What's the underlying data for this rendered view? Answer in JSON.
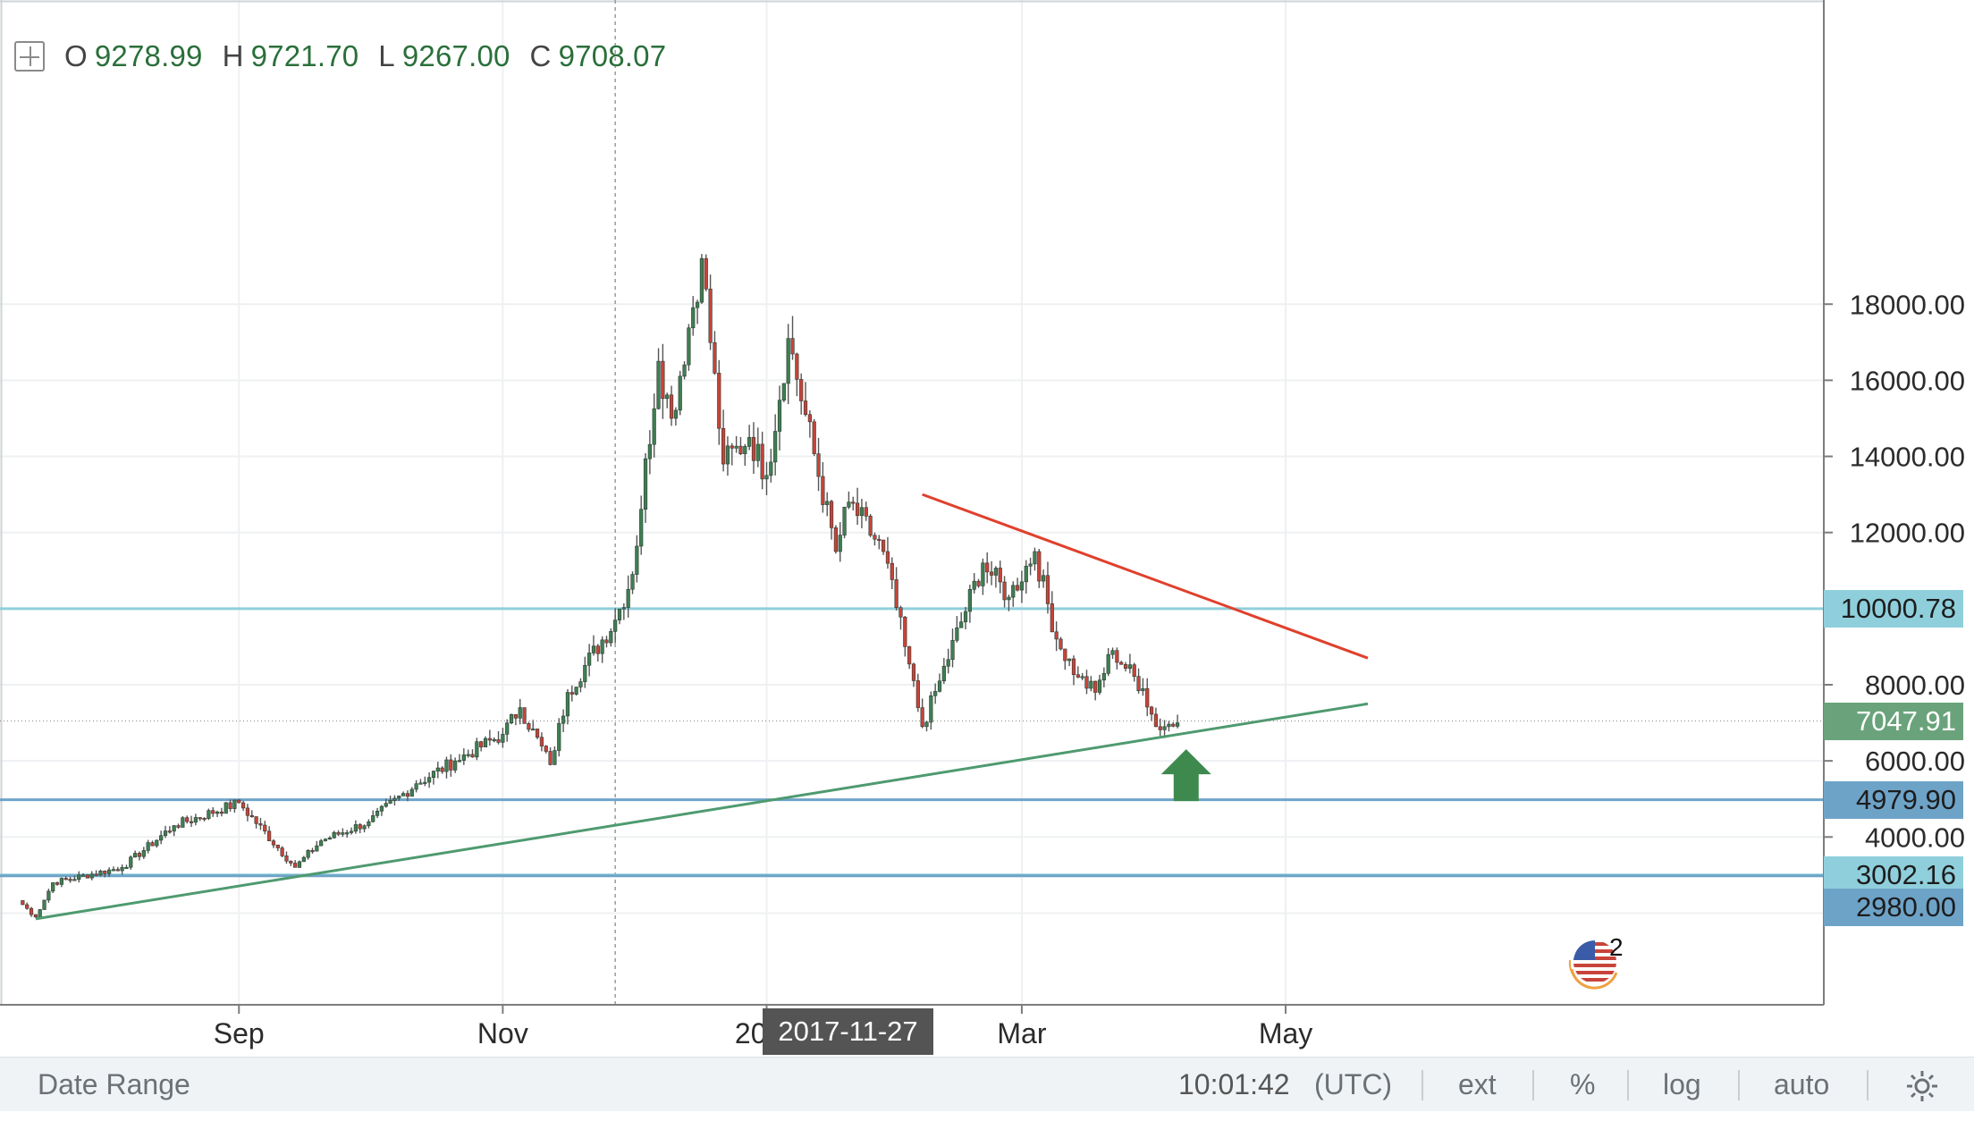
{
  "legend": {
    "open_label": "O",
    "open_value": "9278.99",
    "high_label": "H",
    "high_value": "9721.70",
    "low_label": "L",
    "low_value": "9267.00",
    "close_label": "C",
    "close_value": "9708.07"
  },
  "chart_data": {
    "type": "candlestick",
    "title": "",
    "xlabel": "",
    "ylabel": "",
    "x_ticks": [
      "Sep",
      "Nov",
      "2018",
      "Mar",
      "May"
    ],
    "y_ticks": [
      "4000.00",
      "6000.00",
      "8000.00",
      "12000.00",
      "14000.00",
      "16000.00",
      "18000.00"
    ],
    "ylim": [
      1300,
      19800
    ],
    "price_scale": "linear",
    "crosshair_date": "2017-11-27",
    "horizontal_levels": [
      {
        "value": 10000.78,
        "label": "10000.78",
        "color": "#8fcfdc"
      },
      {
        "value": 4979.9,
        "label": "4979.90",
        "color": "#6ea3c8"
      },
      {
        "value": 3002.16,
        "label": "3002.16",
        "color": "#8fcfdc"
      },
      {
        "value": 2980.0,
        "label": "2980.00",
        "color": "#6ea3c8"
      }
    ],
    "last_price": {
      "value": 7047.91,
      "label": "7047.91",
      "color": "#6aa37b"
    },
    "trendlines": [
      {
        "name": "",
        "color": "#e0402c",
        "points": [
          [
            "2018-02-06",
            13000
          ],
          [
            "2018-05-20",
            8700
          ]
        ]
      },
      {
        "name": "",
        "color": "#4e9a6f",
        "points": [
          [
            "2017-07-16",
            1850
          ],
          [
            "2018-05-20",
            7500
          ]
        ]
      }
    ],
    "annotations": [
      {
        "type": "arrow-up",
        "date": "2018-04-08",
        "value": 5600,
        "color": "#3e8a4e"
      }
    ],
    "colors": {
      "up": "#3f7f52",
      "down": "#c8433a",
      "wick": "#555555"
    },
    "key_points": [
      {
        "date": "2017-07-12",
        "close": 2330
      },
      {
        "date": "2017-07-16",
        "close": 1900
      },
      {
        "date": "2017-07-20",
        "close": 2800
      },
      {
        "date": "2017-08-05",
        "close": 3200
      },
      {
        "date": "2017-08-17",
        "close": 4300
      },
      {
        "date": "2017-09-01",
        "close": 4900
      },
      {
        "date": "2017-09-14",
        "close": 3200
      },
      {
        "date": "2017-09-20",
        "close": 3900
      },
      {
        "date": "2017-10-01",
        "close": 4400
      },
      {
        "date": "2017-10-12",
        "close": 5400
      },
      {
        "date": "2017-10-21",
        "close": 6000
      },
      {
        "date": "2017-11-01",
        "close": 6700
      },
      {
        "date": "2017-11-05",
        "close": 7400
      },
      {
        "date": "2017-11-12",
        "close": 5900
      },
      {
        "date": "2017-11-16",
        "close": 7800
      },
      {
        "date": "2017-11-27",
        "close": 9700
      },
      {
        "date": "2017-12-01",
        "close": 10900
      },
      {
        "date": "2017-12-07",
        "close": 16500
      },
      {
        "date": "2017-12-10",
        "close": 15000
      },
      {
        "date": "2017-12-17",
        "close": 19200
      },
      {
        "date": "2017-12-22",
        "close": 13800
      },
      {
        "date": "2017-12-28",
        "close": 14500
      },
      {
        "date": "2018-01-01",
        "close": 13500
      },
      {
        "date": "2018-01-06",
        "close": 17100
      },
      {
        "date": "2018-01-17",
        "close": 11500
      },
      {
        "date": "2018-01-20",
        "close": 12800
      },
      {
        "date": "2018-01-28",
        "close": 11500
      },
      {
        "date": "2018-02-02",
        "close": 9000
      },
      {
        "date": "2018-02-06",
        "close": 6900
      },
      {
        "date": "2018-02-10",
        "close": 8100
      },
      {
        "date": "2018-02-20",
        "close": 11200
      },
      {
        "date": "2018-02-26",
        "close": 10300
      },
      {
        "date": "2018-03-04",
        "close": 11500
      },
      {
        "date": "2018-03-09",
        "close": 9200
      },
      {
        "date": "2018-03-14",
        "close": 8200
      },
      {
        "date": "2018-03-18",
        "close": 7800
      },
      {
        "date": "2018-03-22",
        "close": 8900
      },
      {
        "date": "2018-03-29",
        "close": 7900
      },
      {
        "date": "2018-04-01",
        "close": 6900
      },
      {
        "date": "2018-04-06",
        "close": 7000
      }
    ]
  },
  "date_marker": "2017-11-27",
  "bottom_bar": {
    "date_range": "Date Range",
    "time": "10:01:42",
    "timezone": "(UTC)",
    "ext": "ext",
    "percent": "%",
    "log": "log",
    "auto": "auto",
    "settings_icon": "gear-icon"
  },
  "badge": {
    "icon": "us-flag-icon",
    "count": "2"
  }
}
